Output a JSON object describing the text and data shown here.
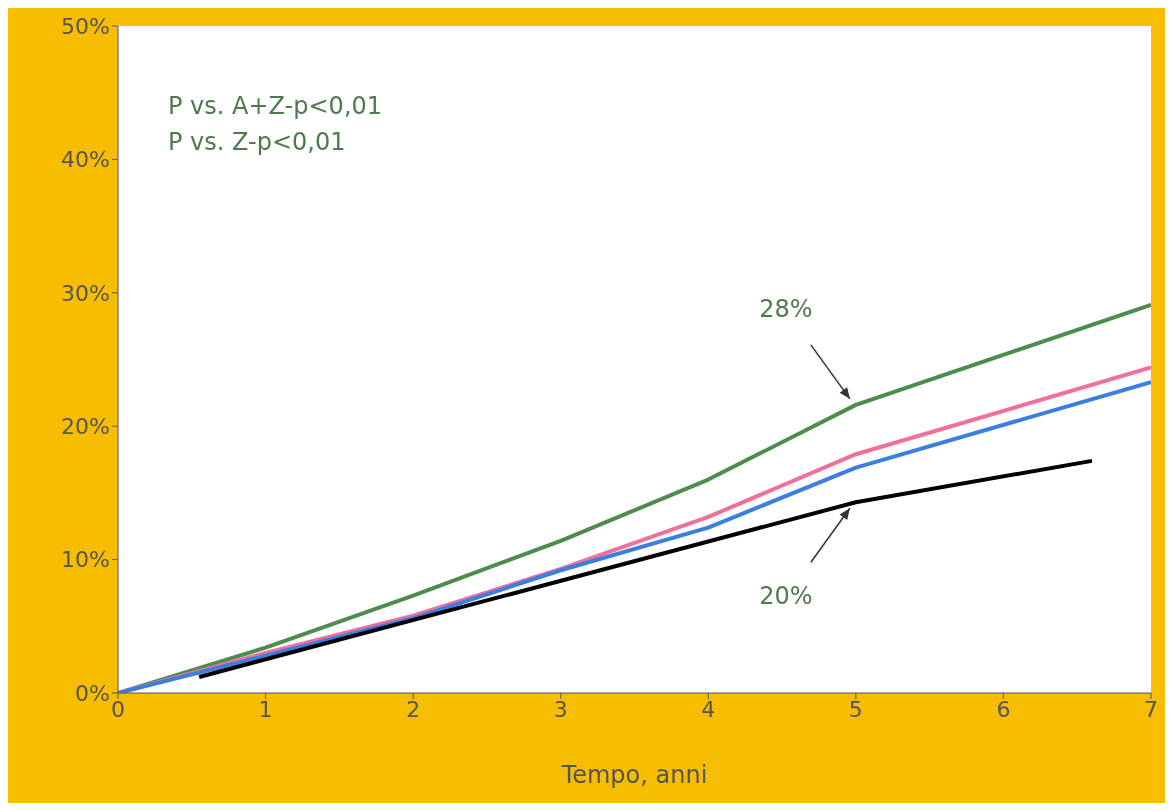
{
  "chart_data": {
    "type": "line",
    "xlabel": "Tempo, anni",
    "annotations": [
      "P vs. A+Z-p<0,01",
      "P vs. Z-p<0,01",
      {
        "text": "28%",
        "x": 5,
        "y": 21.6
      },
      {
        "text": "20%",
        "x": 5,
        "y": 14.3
      }
    ],
    "series": [
      {
        "color": "#4e8b4e",
        "x": [
          0,
          1,
          2,
          3,
          4,
          5,
          7
        ],
        "values": [
          0,
          3.4,
          7.3,
          11.4,
          16,
          21.6,
          29.1
        ]
      },
      {
        "color": "#f0709c",
        "x": [
          0,
          1,
          2,
          3,
          4,
          5,
          7
        ],
        "values": [
          0,
          3,
          5.8,
          9.3,
          13.2,
          17.9,
          24.4
        ]
      },
      {
        "color": "#3a7fe0",
        "x": [
          0,
          1,
          2,
          3,
          4,
          5,
          7
        ],
        "values": [
          0,
          2.8,
          5.6,
          9.2,
          12.4,
          16.9,
          23.3
        ]
      },
      {
        "color": "#000000",
        "x": [
          0.55,
          5,
          6.6
        ],
        "values": [
          1.2,
          14.3,
          17.4
        ]
      }
    ],
    "xlim": [
      0,
      7
    ],
    "xticks": [
      0,
      1,
      2,
      3,
      4,
      5,
      6,
      7
    ],
    "ylim": [
      0,
      50
    ],
    "yticks": [
      {
        "value": 0,
        "label": "0%"
      },
      {
        "value": 10,
        "label": "10%"
      },
      {
        "value": 20,
        "label": "20%"
      },
      {
        "value": 30,
        "label": "30%"
      },
      {
        "value": 40,
        "label": "40%"
      },
      {
        "value": 50,
        "label": "50%"
      }
    ],
    "grid": false,
    "legend": false,
    "marker": "none",
    "line_style": "solid"
  }
}
